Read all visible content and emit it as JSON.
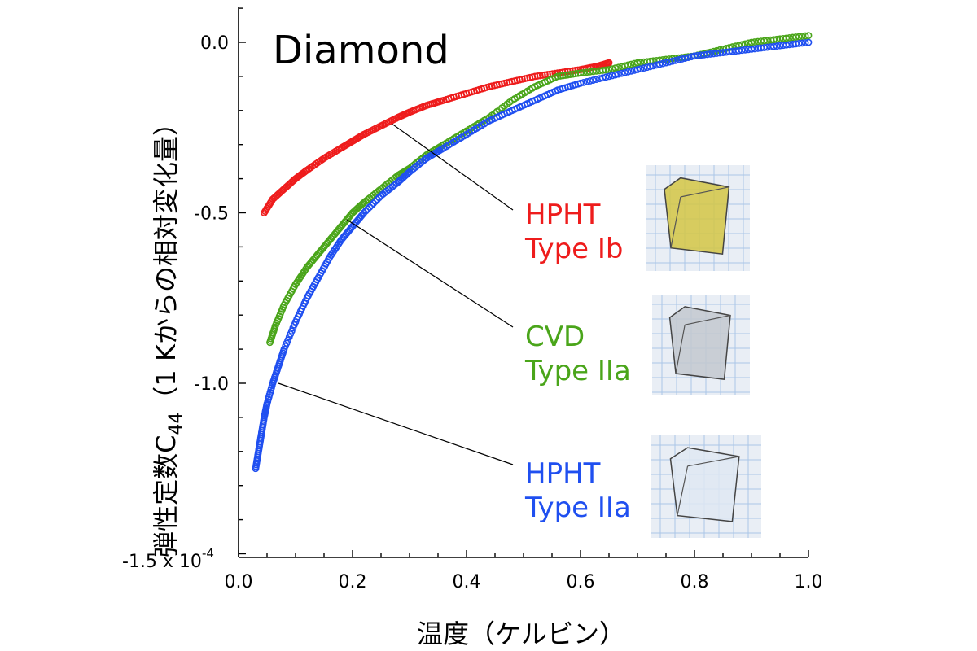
{
  "chart_data": {
    "type": "scatter",
    "title": "Diamond",
    "xlabel": "温度（ケルビン）",
    "ylabel_main": "弾性定数C",
    "ylabel_sub": "44",
    "ylabel_rest": "（1 Kからの相対変化量）",
    "y_unit_label": "-1.5 x 10",
    "y_unit_exp": "-4",
    "xlim": [
      0.0,
      1.0
    ],
    "ylim": [
      -1.5,
      0.1
    ],
    "x_ticks": [
      {
        "value": 0.0,
        "label": "0.0"
      },
      {
        "value": 0.2,
        "label": "0.2"
      },
      {
        "value": 0.4,
        "label": "0.4"
      },
      {
        "value": 0.6,
        "label": "0.6"
      },
      {
        "value": 0.8,
        "label": "0.8"
      },
      {
        "value": 1.0,
        "label": "1.0"
      }
    ],
    "y_ticks": [
      {
        "value": 0.0,
        "label": "0.0"
      },
      {
        "value": -0.5,
        "label": "-0.5"
      },
      {
        "value": -1.0,
        "label": "-1.0"
      },
      {
        "value": -1.5,
        "label": ""
      }
    ],
    "marker": "open-circle",
    "grid": false,
    "series": [
      {
        "name_line1": "HPHT",
        "name_line2": "Type Ib",
        "color": "#ee1c1c",
        "x": [
          0.045,
          0.06,
          0.08,
          0.1,
          0.12,
          0.15,
          0.18,
          0.2,
          0.22,
          0.25,
          0.28,
          0.3,
          0.33,
          0.36,
          0.4,
          0.44,
          0.48,
          0.52,
          0.56,
          0.6,
          0.63,
          0.65
        ],
        "y": [
          -0.5,
          -0.46,
          -0.43,
          -0.4,
          -0.375,
          -0.34,
          -0.31,
          -0.29,
          -0.27,
          -0.245,
          -0.22,
          -0.205,
          -0.185,
          -0.17,
          -0.15,
          -0.13,
          -0.115,
          -0.1,
          -0.09,
          -0.08,
          -0.07,
          -0.06
        ]
      },
      {
        "name_line1": "CVD",
        "name_line2": "Type IIa",
        "color": "#4aa51a",
        "x": [
          0.055,
          0.065,
          0.08,
          0.1,
          0.12,
          0.14,
          0.16,
          0.18,
          0.2,
          0.22,
          0.25,
          0.28,
          0.3,
          0.33,
          0.36,
          0.4,
          0.44,
          0.48,
          0.52,
          0.56,
          0.6,
          0.65,
          0.7,
          0.75,
          0.8,
          0.85,
          0.9,
          0.95,
          1.0
        ],
        "y": [
          -0.88,
          -0.83,
          -0.77,
          -0.71,
          -0.66,
          -0.62,
          -0.58,
          -0.54,
          -0.5,
          -0.47,
          -0.43,
          -0.39,
          -0.37,
          -0.33,
          -0.3,
          -0.26,
          -0.22,
          -0.17,
          -0.13,
          -0.1,
          -0.09,
          -0.08,
          -0.06,
          -0.05,
          -0.04,
          -0.02,
          0.0,
          0.01,
          0.02
        ]
      },
      {
        "name_line1": "HPHT",
        "name_line2": "Type IIa",
        "color": "#1f4ff0",
        "x": [
          0.03,
          0.035,
          0.04,
          0.045,
          0.05,
          0.06,
          0.07,
          0.08,
          0.1,
          0.12,
          0.14,
          0.16,
          0.18,
          0.2,
          0.22,
          0.25,
          0.28,
          0.3,
          0.33,
          0.36,
          0.4,
          0.44,
          0.48,
          0.52,
          0.56,
          0.6,
          0.65,
          0.7,
          0.75,
          0.8,
          0.85,
          0.9,
          0.95,
          1.0
        ],
        "y": [
          -1.25,
          -1.2,
          -1.15,
          -1.1,
          -1.06,
          -1.0,
          -0.95,
          -0.9,
          -0.82,
          -0.75,
          -0.69,
          -0.63,
          -0.58,
          -0.54,
          -0.5,
          -0.45,
          -0.41,
          -0.38,
          -0.34,
          -0.31,
          -0.27,
          -0.23,
          -0.2,
          -0.17,
          -0.14,
          -0.12,
          -0.1,
          -0.08,
          -0.06,
          -0.04,
          -0.03,
          -0.02,
          -0.01,
          0.0
        ]
      }
    ]
  },
  "legend": {
    "placement": "right",
    "photos": [
      {
        "color": "#d4c544",
        "series": 0
      },
      {
        "color": "#c3c8cf",
        "series": 1
      },
      {
        "color": "#dfe8f2",
        "series": 2
      }
    ]
  }
}
